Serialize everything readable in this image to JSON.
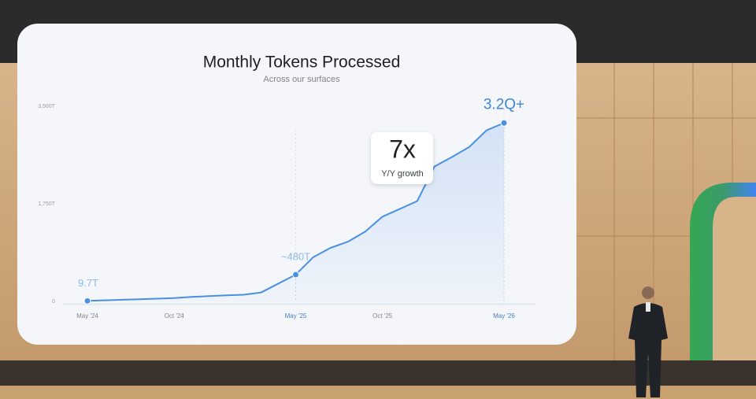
{
  "chart_data": {
    "type": "line",
    "title": "Monthly Tokens Processed",
    "subtitle": "Across our surfaces",
    "categories": [
      "May '24",
      null,
      null,
      null,
      null,
      "Oct '24",
      null,
      null,
      null,
      null,
      null,
      null,
      "May '25",
      null,
      null,
      null,
      null,
      "Oct '25",
      null,
      null,
      null,
      null,
      null,
      null,
      "May '26"
    ],
    "values": [
      9.7,
      20,
      30,
      40,
      50,
      60,
      80,
      95,
      110,
      120,
      160,
      320,
      480,
      790,
      960,
      1070,
      1250,
      1520,
      1660,
      1800,
      2420,
      2590,
      2770,
      3070,
      3200
    ],
    "value_labels": [
      "9.7T",
      null,
      null,
      null,
      null,
      null,
      null,
      null,
      null,
      null,
      null,
      null,
      "~480T",
      null,
      null,
      null,
      null,
      null,
      null,
      null,
      null,
      null,
      null,
      null,
      "3.2Q+"
    ],
    "color": "#4a90e2",
    "ylim": [
      0,
      3500
    ],
    "yticks": [
      0,
      {
        "value": 1750,
        "label": "1,750T"
      },
      {
        "value": 3500,
        "label": "3,500T"
      }
    ],
    "grid": false,
    "annotation": {
      "text": "7x",
      "subtext": "Y/Y growth"
    }
  }
}
